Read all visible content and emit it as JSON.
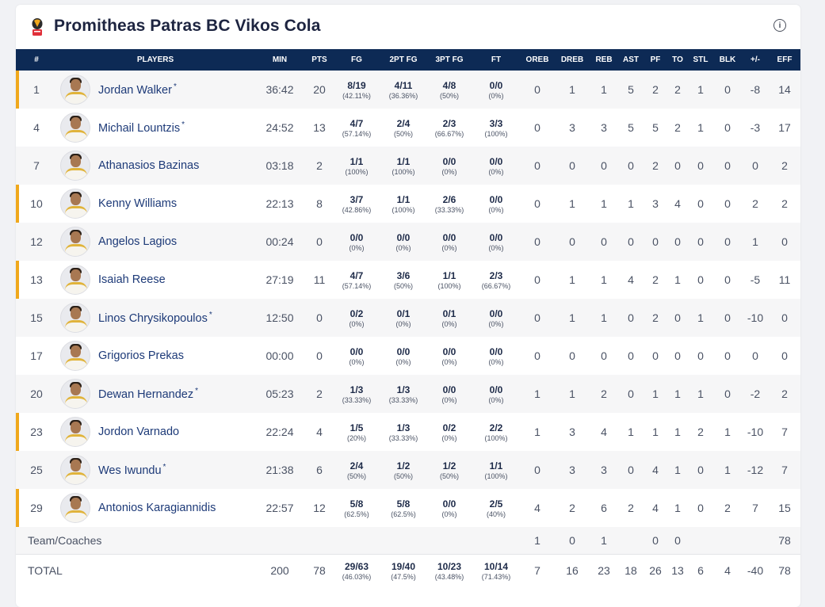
{
  "team": {
    "title": "Promitheas Patras BC Vikos Cola",
    "logo_icon": "team-crest-icon",
    "accent_color": "#f0a81c",
    "header_bg": "#0d2a55"
  },
  "columns": [
    "#",
    "PLAYERS",
    "MIN",
    "PTS",
    "FG",
    "2PT FG",
    "3PT FG",
    "FT",
    "OREB",
    "DREB",
    "REB",
    "AST",
    "PF",
    "TO",
    "STL",
    "BLK",
    "+/-",
    "EFF"
  ],
  "players": [
    {
      "num": "1",
      "name": "Jordan Walker",
      "star": "*",
      "starter": true,
      "min": "36:42",
      "pts": "20",
      "fg": "8/19",
      "fg_pct": "(42.11%)",
      "fg2": "4/11",
      "fg2_pct": "(36.36%)",
      "fg3": "4/8",
      "fg3_pct": "(50%)",
      "ft": "0/0",
      "ft_pct": "(0%)",
      "oreb": "0",
      "dreb": "1",
      "reb": "1",
      "ast": "5",
      "pf": "2",
      "to": "2",
      "stl": "1",
      "blk": "0",
      "pm": "-8",
      "eff": "14"
    },
    {
      "num": "4",
      "name": "Michail Lountzis",
      "star": "*",
      "starter": false,
      "min": "24:52",
      "pts": "13",
      "fg": "4/7",
      "fg_pct": "(57.14%)",
      "fg2": "2/4",
      "fg2_pct": "(50%)",
      "fg3": "2/3",
      "fg3_pct": "(66.67%)",
      "ft": "3/3",
      "ft_pct": "(100%)",
      "oreb": "0",
      "dreb": "3",
      "reb": "3",
      "ast": "5",
      "pf": "5",
      "to": "2",
      "stl": "1",
      "blk": "0",
      "pm": "-3",
      "eff": "17"
    },
    {
      "num": "7",
      "name": "Athanasios Bazinas",
      "star": "",
      "starter": false,
      "min": "03:18",
      "pts": "2",
      "fg": "1/1",
      "fg_pct": "(100%)",
      "fg2": "1/1",
      "fg2_pct": "(100%)",
      "fg3": "0/0",
      "fg3_pct": "(0%)",
      "ft": "0/0",
      "ft_pct": "(0%)",
      "oreb": "0",
      "dreb": "0",
      "reb": "0",
      "ast": "0",
      "pf": "2",
      "to": "0",
      "stl": "0",
      "blk": "0",
      "pm": "0",
      "eff": "2"
    },
    {
      "num": "10",
      "name": "Kenny Williams",
      "star": "",
      "starter": true,
      "min": "22:13",
      "pts": "8",
      "fg": "3/7",
      "fg_pct": "(42.86%)",
      "fg2": "1/1",
      "fg2_pct": "(100%)",
      "fg3": "2/6",
      "fg3_pct": "(33.33%)",
      "ft": "0/0",
      "ft_pct": "(0%)",
      "oreb": "0",
      "dreb": "1",
      "reb": "1",
      "ast": "1",
      "pf": "3",
      "to": "4",
      "stl": "0",
      "blk": "0",
      "pm": "2",
      "eff": "2"
    },
    {
      "num": "12",
      "name": "Angelos Lagios",
      "star": "",
      "starter": false,
      "min": "00:24",
      "pts": "0",
      "fg": "0/0",
      "fg_pct": "(0%)",
      "fg2": "0/0",
      "fg2_pct": "(0%)",
      "fg3": "0/0",
      "fg3_pct": "(0%)",
      "ft": "0/0",
      "ft_pct": "(0%)",
      "oreb": "0",
      "dreb": "0",
      "reb": "0",
      "ast": "0",
      "pf": "0",
      "to": "0",
      "stl": "0",
      "blk": "0",
      "pm": "1",
      "eff": "0"
    },
    {
      "num": "13",
      "name": "Isaiah Reese",
      "star": "",
      "starter": true,
      "min": "27:19",
      "pts": "11",
      "fg": "4/7",
      "fg_pct": "(57.14%)",
      "fg2": "3/6",
      "fg2_pct": "(50%)",
      "fg3": "1/1",
      "fg3_pct": "(100%)",
      "ft": "2/3",
      "ft_pct": "(66.67%)",
      "oreb": "0",
      "dreb": "1",
      "reb": "1",
      "ast": "4",
      "pf": "2",
      "to": "1",
      "stl": "0",
      "blk": "0",
      "pm": "-5",
      "eff": "11"
    },
    {
      "num": "15",
      "name": "Linos Chrysikopoulos",
      "star": "*",
      "starter": false,
      "min": "12:50",
      "pts": "0",
      "fg": "0/2",
      "fg_pct": "(0%)",
      "fg2": "0/1",
      "fg2_pct": "(0%)",
      "fg3": "0/1",
      "fg3_pct": "(0%)",
      "ft": "0/0",
      "ft_pct": "(0%)",
      "oreb": "0",
      "dreb": "1",
      "reb": "1",
      "ast": "0",
      "pf": "2",
      "to": "0",
      "stl": "1",
      "blk": "0",
      "pm": "-10",
      "eff": "0"
    },
    {
      "num": "17",
      "name": "Grigorios Prekas",
      "star": "",
      "starter": false,
      "min": "00:00",
      "pts": "0",
      "fg": "0/0",
      "fg_pct": "(0%)",
      "fg2": "0/0",
      "fg2_pct": "(0%)",
      "fg3": "0/0",
      "fg3_pct": "(0%)",
      "ft": "0/0",
      "ft_pct": "(0%)",
      "oreb": "0",
      "dreb": "0",
      "reb": "0",
      "ast": "0",
      "pf": "0",
      "to": "0",
      "stl": "0",
      "blk": "0",
      "pm": "0",
      "eff": "0"
    },
    {
      "num": "20",
      "name": "Dewan Hernandez",
      "star": "*",
      "starter": false,
      "min": "05:23",
      "pts": "2",
      "fg": "1/3",
      "fg_pct": "(33.33%)",
      "fg2": "1/3",
      "fg2_pct": "(33.33%)",
      "fg3": "0/0",
      "fg3_pct": "(0%)",
      "ft": "0/0",
      "ft_pct": "(0%)",
      "oreb": "1",
      "dreb": "1",
      "reb": "2",
      "ast": "0",
      "pf": "1",
      "to": "1",
      "stl": "1",
      "blk": "0",
      "pm": "-2",
      "eff": "2"
    },
    {
      "num": "23",
      "name": "Jordon Varnado",
      "star": "",
      "starter": true,
      "min": "22:24",
      "pts": "4",
      "fg": "1/5",
      "fg_pct": "(20%)",
      "fg2": "1/3",
      "fg2_pct": "(33.33%)",
      "fg3": "0/2",
      "fg3_pct": "(0%)",
      "ft": "2/2",
      "ft_pct": "(100%)",
      "oreb": "1",
      "dreb": "3",
      "reb": "4",
      "ast": "1",
      "pf": "1",
      "to": "1",
      "stl": "2",
      "blk": "1",
      "pm": "-10",
      "eff": "7"
    },
    {
      "num": "25",
      "name": "Wes Iwundu",
      "star": "*",
      "starter": false,
      "min": "21:38",
      "pts": "6",
      "fg": "2/4",
      "fg_pct": "(50%)",
      "fg2": "1/2",
      "fg2_pct": "(50%)",
      "fg3": "1/2",
      "fg3_pct": "(50%)",
      "ft": "1/1",
      "ft_pct": "(100%)",
      "oreb": "0",
      "dreb": "3",
      "reb": "3",
      "ast": "0",
      "pf": "4",
      "to": "1",
      "stl": "0",
      "blk": "1",
      "pm": "-12",
      "eff": "7"
    },
    {
      "num": "29",
      "name": "Antonios Karagiannidis",
      "star": "",
      "starter": true,
      "min": "22:57",
      "pts": "12",
      "fg": "5/8",
      "fg_pct": "(62.5%)",
      "fg2": "5/8",
      "fg2_pct": "(62.5%)",
      "fg3": "0/0",
      "fg3_pct": "(0%)",
      "ft": "2/5",
      "ft_pct": "(40%)",
      "oreb": "4",
      "dreb": "2",
      "reb": "6",
      "ast": "2",
      "pf": "4",
      "to": "1",
      "stl": "0",
      "blk": "2",
      "pm": "7",
      "eff": "15"
    }
  ],
  "team_coaches": {
    "label": "Team/Coaches",
    "oreb": "1",
    "dreb": "0",
    "reb": "1",
    "ast": "",
    "pf": "0",
    "to": "0",
    "stl": "",
    "blk": "",
    "pm": "",
    "eff": "78"
  },
  "total": {
    "label": "TOTAL",
    "min": "200",
    "pts": "78",
    "fg": "29/63",
    "fg_pct": "(46.03%)",
    "fg2": "19/40",
    "fg2_pct": "(47.5%)",
    "fg3": "10/23",
    "fg3_pct": "(43.48%)",
    "ft": "10/14",
    "ft_pct": "(71.43%)",
    "oreb": "7",
    "dreb": "16",
    "reb": "23",
    "ast": "18",
    "pf": "26",
    "to": "13",
    "stl": "6",
    "blk": "4",
    "pm": "-40",
    "eff": "78"
  }
}
